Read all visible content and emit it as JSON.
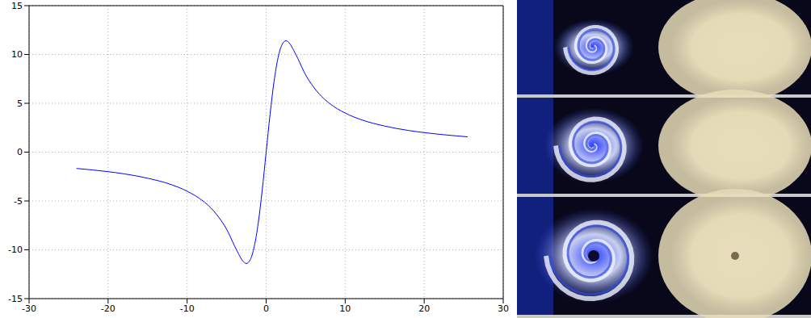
{
  "chart_data": {
    "type": "line",
    "x": [
      -24,
      -22,
      -20,
      -18,
      -15,
      -12,
      -10,
      -8,
      -7,
      -6,
      -5,
      -4,
      -3.5,
      -3,
      -2.5,
      -2,
      -1.5,
      -1,
      -0.5,
      0,
      0.5,
      1,
      1.5,
      2,
      2.5,
      3,
      3.5,
      4,
      5,
      6,
      7,
      8,
      10,
      12,
      15,
      18,
      20,
      22,
      24,
      25.5
    ],
    "series": [
      {
        "color": "#0000ff",
        "values": [
          -1.67,
          -1.82,
          -2.0,
          -2.22,
          -2.67,
          -3.33,
          -4.0,
          -5.0,
          -5.71,
          -6.67,
          -7.9,
          -9.6,
          -10.4,
          -11.1,
          -11.4,
          -11.0,
          -9.65,
          -7.25,
          -3.9,
          0,
          3.9,
          7.25,
          9.65,
          11.0,
          11.4,
          11.1,
          10.4,
          9.6,
          7.9,
          6.67,
          5.71,
          5.0,
          4.0,
          3.33,
          2.67,
          2.22,
          2.0,
          1.82,
          1.67,
          1.57
        ]
      }
    ],
    "xlim": [
      -30,
      30
    ],
    "xticks": [
      -30,
      -20,
      -10,
      0,
      10,
      20,
      30
    ],
    "ylim": [
      -15,
      15
    ],
    "yticks": [
      -15,
      -10,
      -5,
      0,
      5,
      10,
      15
    ],
    "grid": true
  }
}
